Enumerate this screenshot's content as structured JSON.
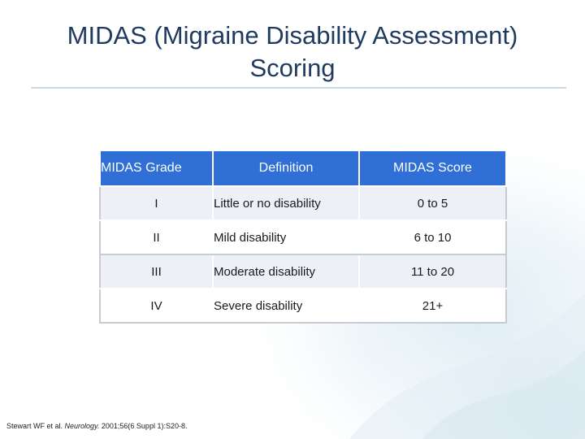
{
  "slide": {
    "title_line1": "MIDAS (Migraine Disability Assessment)",
    "title_line2": "Scoring",
    "citation_pre": "Stewart WF et al. ",
    "citation_journal": "Neurology.",
    "citation_post": " 2001;56(6 Suppl 1):S20-8."
  },
  "table": {
    "headers": [
      "MIDAS Grade",
      "Definition",
      "MIDAS Score"
    ],
    "rows": [
      [
        "I",
        "Little or no disability",
        "0 to 5"
      ],
      [
        "II",
        "Mild disability",
        "6 to 10"
      ],
      [
        "III",
        "Moderate disability",
        "11 to 20"
      ],
      [
        "IV",
        "Severe disability",
        "21+"
      ]
    ]
  },
  "colors": {
    "title": "#1f3a5f",
    "header_fill": "#2f6fd6",
    "row_band": "#eef0f7",
    "rule": "#c7dbe6"
  }
}
